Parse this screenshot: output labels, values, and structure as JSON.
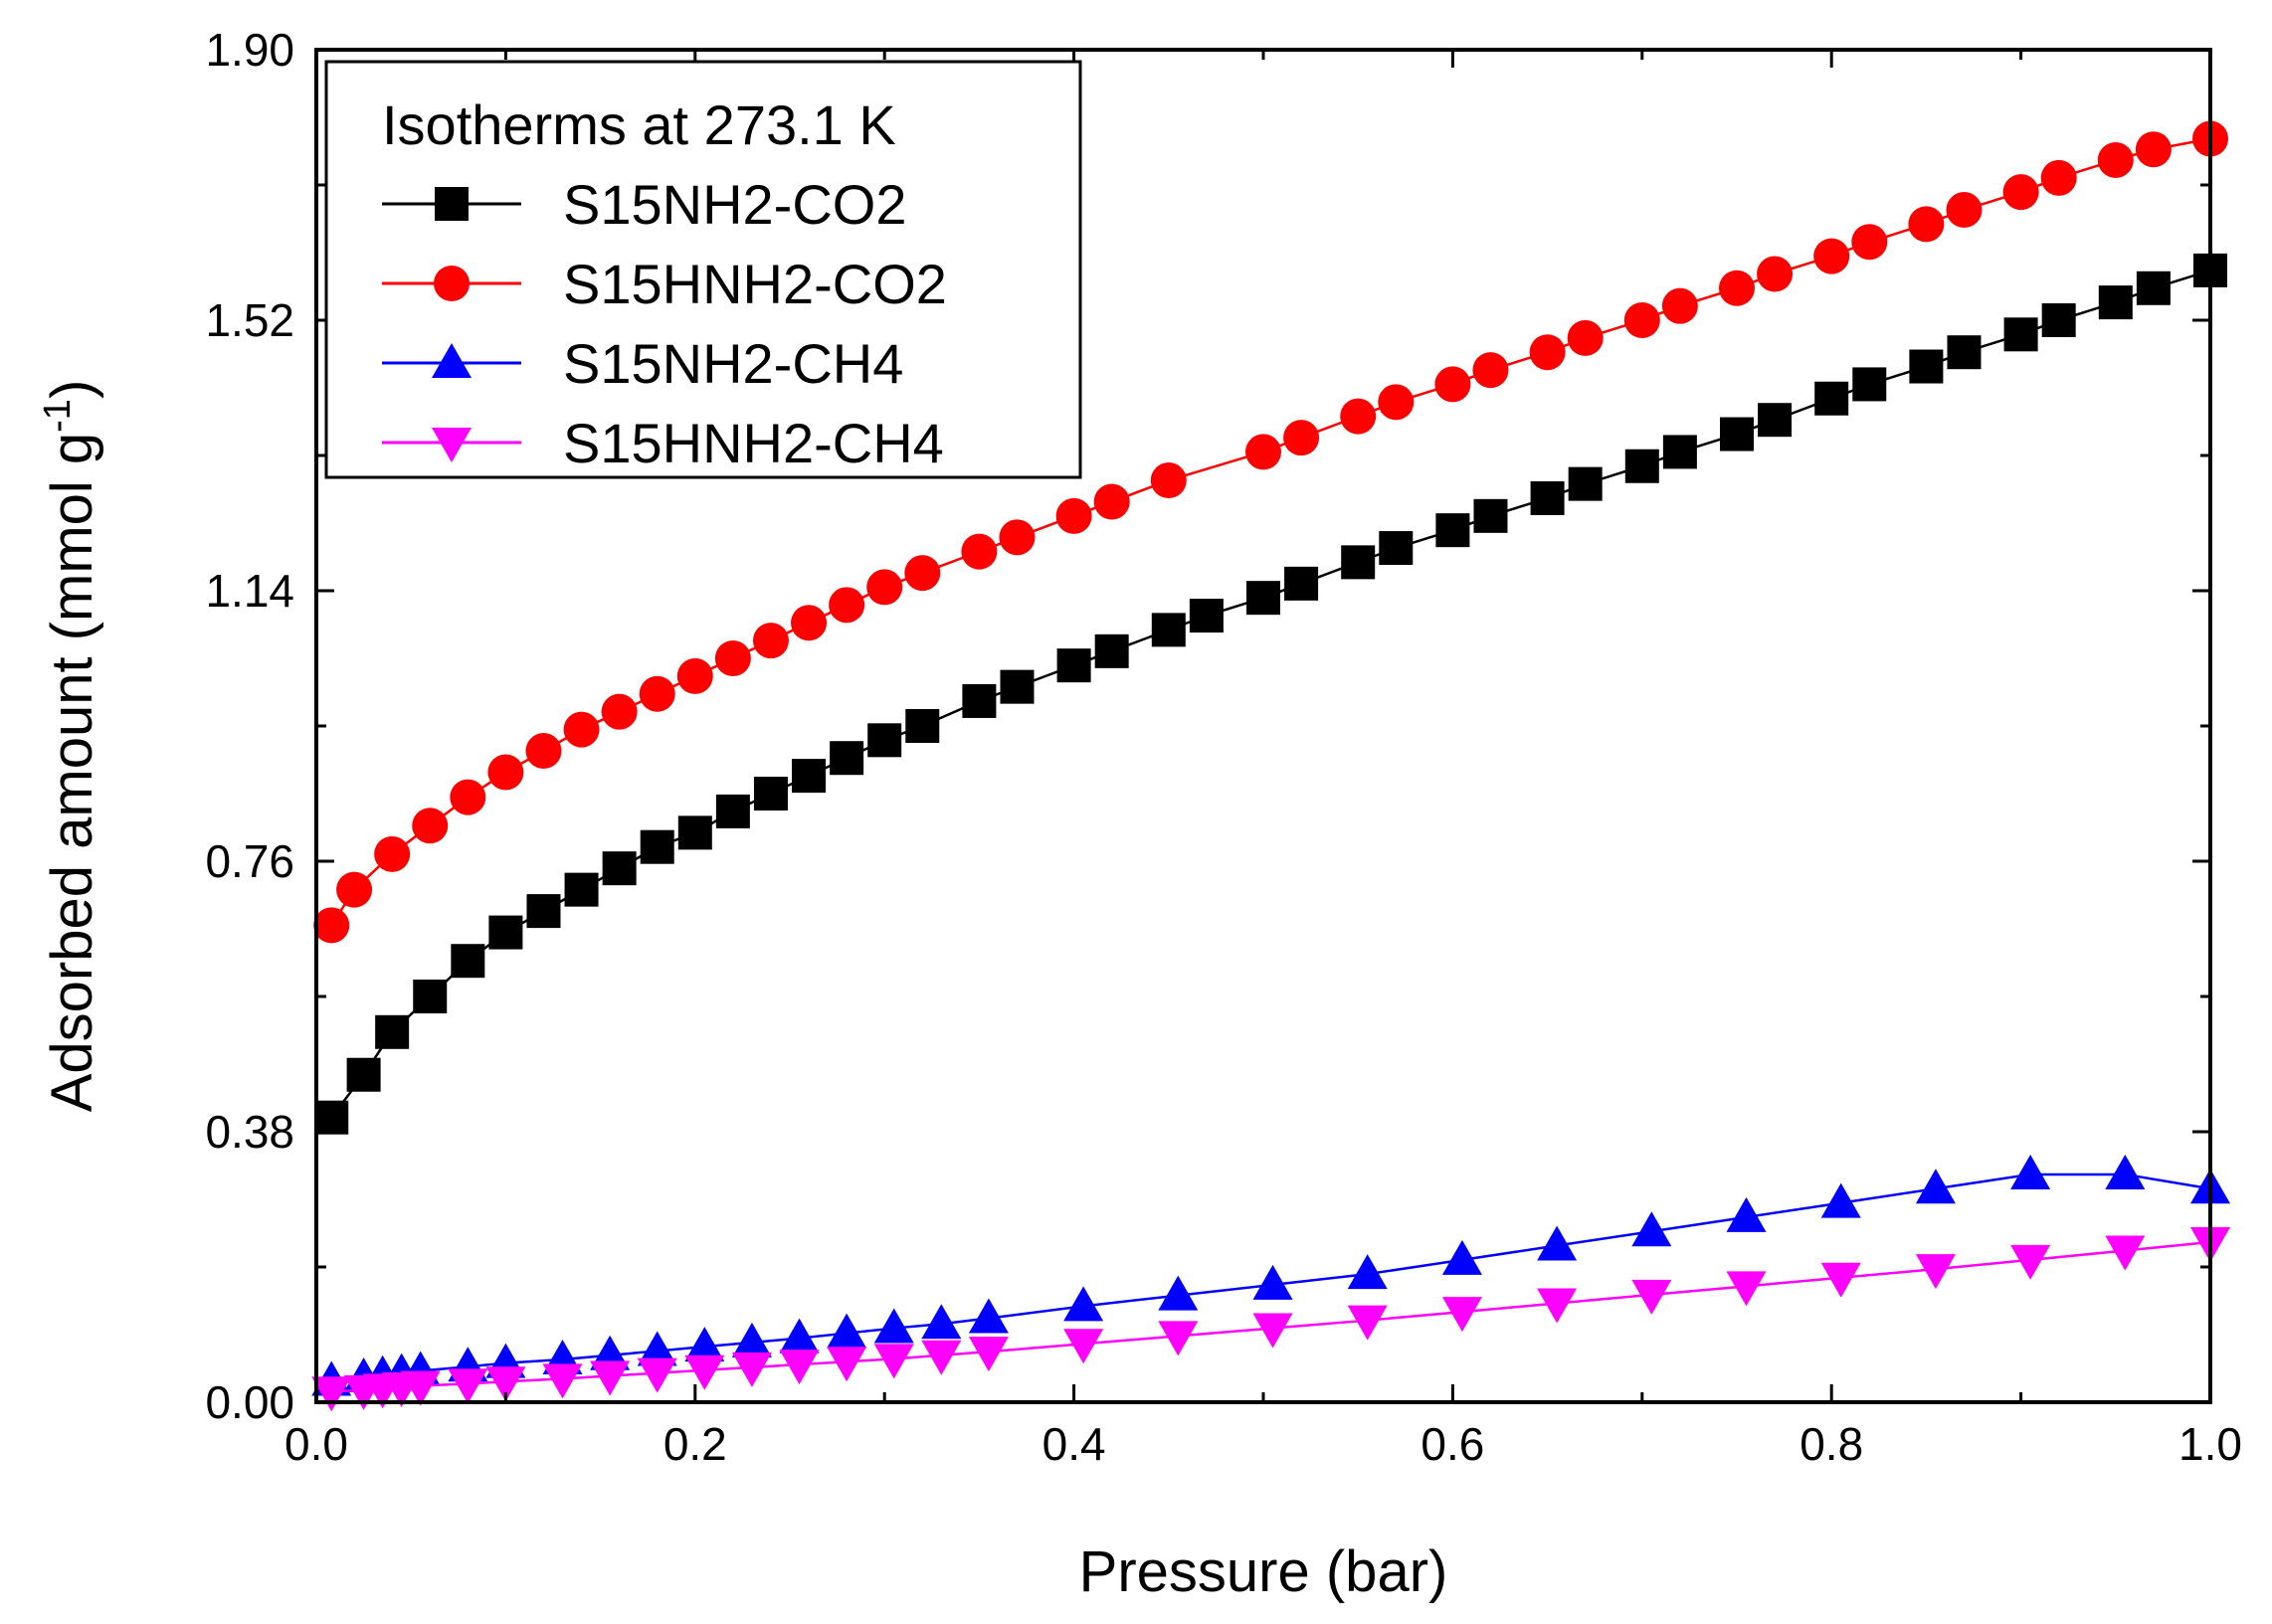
{
  "chart_data": {
    "type": "line",
    "xlabel": "Pressure (bar)",
    "ylabel": "Adsorbed amount (mmol g",
    "ylabel_superscript": "-1",
    "ylabel_suffix": ")",
    "xlim": [
      0.0,
      1.0
    ],
    "ylim": [
      0.0,
      1.9
    ],
    "xticks": [
      0.0,
      0.2,
      0.4,
      0.6,
      0.8,
      1.0
    ],
    "xtick_labels": [
      "0.0",
      "0.2",
      "0.4",
      "0.6",
      "0.8",
      "1.0"
    ],
    "yticks": [
      0.0,
      0.38,
      0.76,
      1.14,
      1.52,
      1.9
    ],
    "ytick_labels": [
      "0.00",
      "0.38",
      "0.76",
      "1.14",
      "1.52",
      "1.90"
    ],
    "grid": false,
    "legend": {
      "title": "Isotherms at 273.1 K",
      "placement": "top-left"
    },
    "series": [
      {
        "name": "S15NH2-CO2",
        "color": "#000000",
        "marker": "square",
        "x": [
          0.008,
          0.025,
          0.04,
          0.06,
          0.08,
          0.1,
          0.12,
          0.14,
          0.16,
          0.18,
          0.2,
          0.22,
          0.24,
          0.26,
          0.28,
          0.3,
          0.32,
          0.35,
          0.37,
          0.4,
          0.42,
          0.45,
          0.47,
          0.5,
          0.52,
          0.55,
          0.57,
          0.6,
          0.62,
          0.65,
          0.67,
          0.7,
          0.72,
          0.75,
          0.77,
          0.8,
          0.82,
          0.85,
          0.87,
          0.9,
          0.92,
          0.95,
          0.97,
          1.0
        ],
        "y": [
          0.4,
          0.46,
          0.52,
          0.57,
          0.62,
          0.66,
          0.69,
          0.72,
          0.75,
          0.78,
          0.8,
          0.83,
          0.855,
          0.88,
          0.905,
          0.93,
          0.95,
          0.985,
          1.005,
          1.035,
          1.055,
          1.085,
          1.105,
          1.13,
          1.15,
          1.18,
          1.2,
          1.225,
          1.245,
          1.27,
          1.29,
          1.315,
          1.335,
          1.36,
          1.38,
          1.41,
          1.43,
          1.455,
          1.475,
          1.5,
          1.52,
          1.545,
          1.565,
          1.59
        ]
      },
      {
        "name": "S15HNH2-CO2",
        "color": "#ff0000",
        "marker": "circle",
        "x": [
          0.008,
          0.02,
          0.04,
          0.06,
          0.08,
          0.1,
          0.12,
          0.14,
          0.16,
          0.18,
          0.2,
          0.22,
          0.24,
          0.26,
          0.28,
          0.3,
          0.32,
          0.35,
          0.37,
          0.4,
          0.42,
          0.45,
          0.5,
          0.52,
          0.55,
          0.57,
          0.6,
          0.62,
          0.65,
          0.67,
          0.7,
          0.72,
          0.75,
          0.77,
          0.8,
          0.82,
          0.85,
          0.87,
          0.9,
          0.92,
          0.95,
          0.97,
          1.0
        ],
        "y": [
          0.67,
          0.72,
          0.77,
          0.81,
          0.85,
          0.885,
          0.915,
          0.945,
          0.97,
          0.995,
          1.02,
          1.045,
          1.07,
          1.095,
          1.12,
          1.145,
          1.165,
          1.195,
          1.215,
          1.245,
          1.265,
          1.295,
          1.335,
          1.355,
          1.385,
          1.405,
          1.43,
          1.45,
          1.475,
          1.495,
          1.52,
          1.54,
          1.565,
          1.585,
          1.61,
          1.63,
          1.655,
          1.675,
          1.7,
          1.72,
          1.745,
          1.76,
          1.775
        ]
      },
      {
        "name": "S15NH2-CH4",
        "color": "#0000ff",
        "marker": "triangle-up",
        "x": [
          0.008,
          0.025,
          0.035,
          0.045,
          0.055,
          0.08,
          0.1,
          0.13,
          0.155,
          0.18,
          0.205,
          0.23,
          0.255,
          0.28,
          0.305,
          0.33,
          0.355,
          0.405,
          0.455,
          0.505,
          0.555,
          0.605,
          0.655,
          0.705,
          0.755,
          0.805,
          0.855,
          0.905,
          0.955,
          1.0
        ],
        "y": [
          0.03,
          0.035,
          0.038,
          0.041,
          0.044,
          0.05,
          0.055,
          0.06,
          0.066,
          0.072,
          0.078,
          0.084,
          0.09,
          0.097,
          0.104,
          0.11,
          0.118,
          0.135,
          0.15,
          0.165,
          0.18,
          0.2,
          0.22,
          0.24,
          0.26,
          0.28,
          0.3,
          0.32,
          0.32,
          0.3
        ]
      },
      {
        "name": "S15HNH2-CH4",
        "color": "#ff00ff",
        "marker": "triangle-down",
        "x": [
          0.008,
          0.025,
          0.035,
          0.045,
          0.055,
          0.08,
          0.1,
          0.13,
          0.155,
          0.18,
          0.205,
          0.23,
          0.255,
          0.28,
          0.305,
          0.33,
          0.355,
          0.405,
          0.455,
          0.505,
          0.555,
          0.605,
          0.655,
          0.705,
          0.755,
          0.805,
          0.855,
          0.905,
          0.955,
          1.0
        ],
        "y": [
          0.015,
          0.017,
          0.019,
          0.021,
          0.023,
          0.026,
          0.029,
          0.033,
          0.037,
          0.041,
          0.045,
          0.049,
          0.053,
          0.057,
          0.061,
          0.066,
          0.071,
          0.082,
          0.093,
          0.104,
          0.115,
          0.127,
          0.139,
          0.151,
          0.163,
          0.175,
          0.187,
          0.2,
          0.213,
          0.225
        ]
      }
    ]
  }
}
